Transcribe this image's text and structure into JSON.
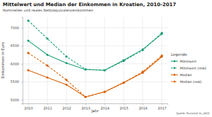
{
  "chart_data": {
    "type": "line",
    "title": "Mittelwert und Median der Einkommen in Kroatien, 2010-2017",
    "subtitle": "Nominelles und reales Nettoäquivalenzeinkommen",
    "x_label": "Jahr",
    "y_label": "Einkommen in Euro",
    "source": "Quelle: Eurostat ilc_di03",
    "legend_title": "Legende",
    "legend": "right",
    "grid": true,
    "x": [
      2010,
      2011,
      2012,
      2013,
      2014,
      2015,
      2016,
      2017
    ],
    "xlim": [
      2009.7,
      2017.3
    ],
    "xticks": [
      2010,
      2011,
      2012,
      2013,
      2014,
      2015,
      2016,
      2017
    ],
    "ylim": [
      4900,
      7300
    ],
    "yticks": [
      5000,
      5500,
      6000,
      6500,
      7000
    ],
    "series": [
      {
        "name": "Mittelwert",
        "color": "#1b9e77",
        "line_style": "solid",
        "marker": "circle",
        "values": [
          6640,
          6250,
          6020,
          5840,
          5820,
          6100,
          6400,
          6830
        ]
      },
      {
        "name": "Mittelwert (real)",
        "color": "#1b9e77",
        "line_style": "dashed",
        "marker": "circle",
        "values": [
          7200,
          6700,
          6200,
          5850,
          5820,
          6080,
          6380,
          6860
        ]
      },
      {
        "name": "Median",
        "color": "#d95f02",
        "line_style": "solid",
        "marker": "circle",
        "values": [
          5820,
          5620,
          5420,
          5080,
          5220,
          5480,
          5750,
          6200
        ]
      },
      {
        "name": "Median (real)",
        "color": "#d95f02",
        "line_style": "dashed",
        "marker": "circle",
        "values": [
          6300,
          5950,
          5550,
          5080,
          5220,
          5470,
          5780,
          6230
        ]
      }
    ]
  }
}
